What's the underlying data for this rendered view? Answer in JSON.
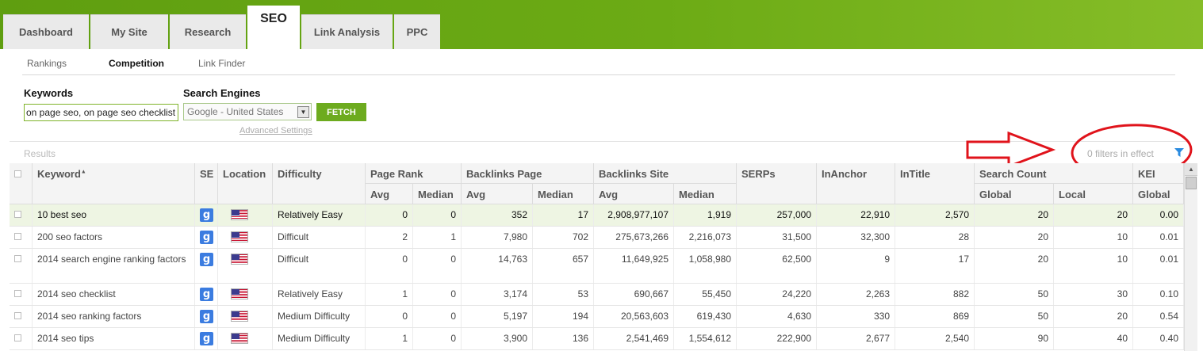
{
  "main_tabs": [
    {
      "label": "Dashboard",
      "active": false
    },
    {
      "label": "My Site",
      "active": false
    },
    {
      "label": "Research",
      "active": false
    },
    {
      "label": "SEO",
      "active": true
    },
    {
      "label": "Link Analysis",
      "active": false
    },
    {
      "label": "PPC",
      "active": false
    }
  ],
  "sub_tabs": [
    {
      "label": "Rankings",
      "active": false
    },
    {
      "label": "Competition",
      "active": true
    },
    {
      "label": "Link Finder",
      "active": false
    }
  ],
  "form": {
    "keywords_label": "Keywords",
    "keywords_value": "on page seo, on page seo checklist",
    "engines_label": "Search Engines",
    "engine_value": "Google - United States",
    "fetch_label": "FETCH",
    "advanced_label": "Advanced Settings"
  },
  "results": {
    "label": "Results",
    "filters_text": "0 filters in effect"
  },
  "table": {
    "headers": {
      "keyword": "Keyword",
      "sort_arrow": "▲",
      "se": "SE",
      "location": "Location",
      "difficulty": "Difficulty",
      "page_rank": "Page Rank",
      "backlinks_page": "Backlinks Page",
      "backlinks_site": "Backlinks Site",
      "serps": "SERPs",
      "inanchor": "InAnchor",
      "intitle": "InTitle",
      "search_count": "Search Count",
      "kei": "KEI",
      "avg": "Avg",
      "median": "Median",
      "global": "Global",
      "local": "Local"
    },
    "se_glyph": "g",
    "rows": [
      {
        "keyword": "10 best seo",
        "difficulty": "Relatively Easy",
        "pr_avg": "0",
        "pr_med": "0",
        "bp_avg": "352",
        "bp_med": "17",
        "bs_avg": "2,908,977,107",
        "bs_med": "1,919",
        "serps": "257,000",
        "inanchor": "22,910",
        "intitle": "2,570",
        "sc_global": "20",
        "sc_local": "20",
        "kei": "0.00",
        "highlight": true
      },
      {
        "keyword": "200 seo factors",
        "difficulty": "Difficult",
        "pr_avg": "2",
        "pr_med": "1",
        "bp_avg": "7,980",
        "bp_med": "702",
        "bs_avg": "275,673,266",
        "bs_med": "2,216,073",
        "serps": "31,500",
        "inanchor": "32,300",
        "intitle": "28",
        "sc_global": "20",
        "sc_local": "10",
        "kei": "0.01",
        "highlight": false
      },
      {
        "keyword": "2014 search engine ranking factors",
        "difficulty": "Difficult",
        "pr_avg": "0",
        "pr_med": "0",
        "bp_avg": "14,763",
        "bp_med": "657",
        "bs_avg": "11,649,925",
        "bs_med": "1,058,980",
        "serps": "62,500",
        "inanchor": "9",
        "intitle": "17",
        "sc_global": "20",
        "sc_local": "10",
        "kei": "0.01",
        "highlight": false
      },
      {
        "keyword": "2014 seo checklist",
        "difficulty": "Relatively Easy",
        "pr_avg": "1",
        "pr_med": "0",
        "bp_avg": "3,174",
        "bp_med": "53",
        "bs_avg": "690,667",
        "bs_med": "55,450",
        "serps": "24,220",
        "inanchor": "2,263",
        "intitle": "882",
        "sc_global": "50",
        "sc_local": "30",
        "kei": "0.10",
        "highlight": false
      },
      {
        "keyword": "2014 seo ranking factors",
        "difficulty": "Medium Difficulty",
        "pr_avg": "0",
        "pr_med": "0",
        "bp_avg": "5,197",
        "bp_med": "194",
        "bs_avg": "20,563,603",
        "bs_med": "619,430",
        "serps": "4,630",
        "inanchor": "330",
        "intitle": "869",
        "sc_global": "50",
        "sc_local": "20",
        "kei": "0.54",
        "highlight": false
      },
      {
        "keyword": "2014 seo tips",
        "difficulty": "Medium Difficulty",
        "pr_avg": "1",
        "pr_med": "0",
        "bp_avg": "3,900",
        "bp_med": "136",
        "bs_avg": "2,541,469",
        "bs_med": "1,554,612",
        "serps": "222,900",
        "inanchor": "2,677",
        "intitle": "2,540",
        "sc_global": "90",
        "sc_local": "40",
        "kei": "0.40",
        "highlight": false
      }
    ]
  },
  "colors": {
    "brand_green": "#6cab15",
    "annotation_red": "#e0131b",
    "filter_blue": "#2a8be0"
  }
}
